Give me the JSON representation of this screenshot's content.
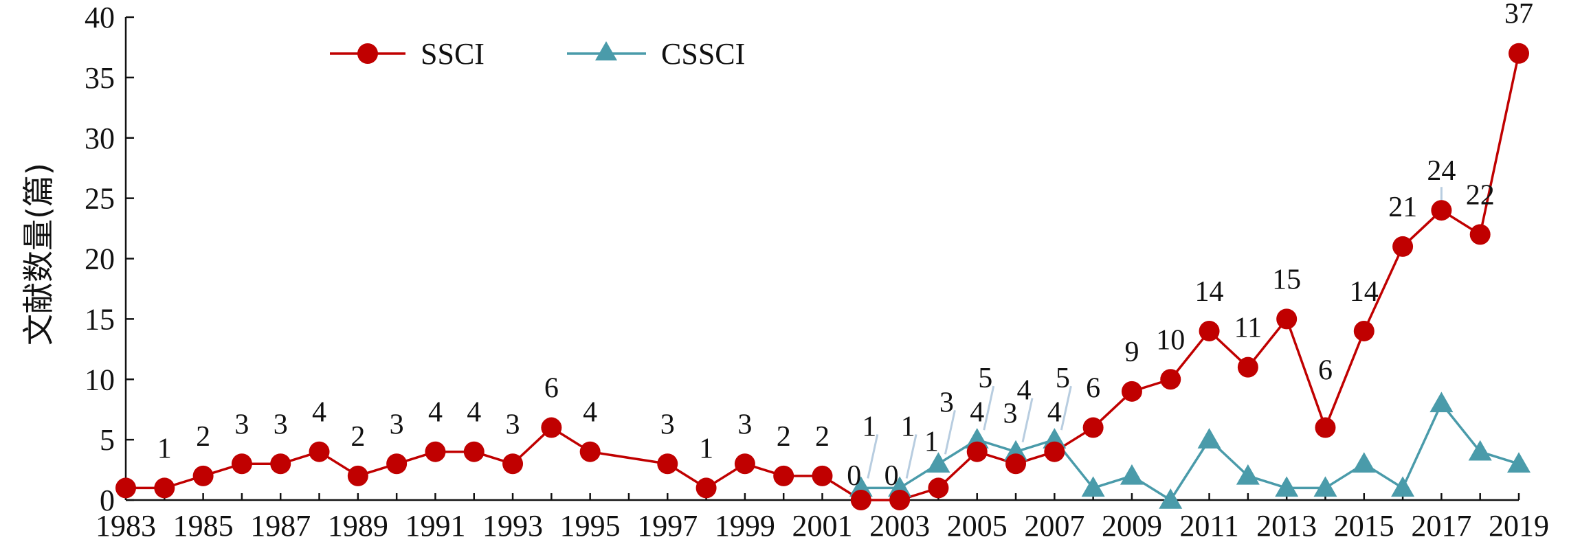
{
  "chart_data": {
    "type": "line",
    "title": "",
    "xlabel": "",
    "ylabel": "文献数量(篇)",
    "xlim": [
      1983,
      2019
    ],
    "ylim": [
      0,
      40
    ],
    "yticks": [
      0,
      5,
      10,
      15,
      20,
      25,
      30,
      35,
      40
    ],
    "xtick_labels": [
      "1983",
      "1985",
      "1987",
      "1989",
      "1991",
      "1993",
      "1995",
      "1997",
      "1999",
      "2001",
      "2003",
      "2005",
      "2007",
      "2009",
      "2011",
      "2013",
      "2015",
      "2017",
      "2019"
    ],
    "grid": false,
    "legend_position": "top-left",
    "series": [
      {
        "name": "SSCI",
        "color": "#C00000",
        "marker": "circle",
        "points": [
          {
            "x": 1983,
            "y": 1
          },
          {
            "x": 1984,
            "y": 1
          },
          {
            "x": 1985,
            "y": 2
          },
          {
            "x": 1986,
            "y": 3
          },
          {
            "x": 1987,
            "y": 3
          },
          {
            "x": 1988,
            "y": 4
          },
          {
            "x": 1989,
            "y": 2
          },
          {
            "x": 1990,
            "y": 3
          },
          {
            "x": 1991,
            "y": 4
          },
          {
            "x": 1992,
            "y": 4
          },
          {
            "x": 1993,
            "y": 3
          },
          {
            "x": 1994,
            "y": 6
          },
          {
            "x": 1995,
            "y": 4
          },
          {
            "x": 1997,
            "y": 3
          },
          {
            "x": 1998,
            "y": 1
          },
          {
            "x": 1999,
            "y": 3
          },
          {
            "x": 2000,
            "y": 2
          },
          {
            "x": 2001,
            "y": 2
          },
          {
            "x": 2002,
            "y": 0
          },
          {
            "x": 2003,
            "y": 0
          },
          {
            "x": 2004,
            "y": 1
          },
          {
            "x": 2005,
            "y": 4
          },
          {
            "x": 2006,
            "y": 3
          },
          {
            "x": 2007,
            "y": 4
          },
          {
            "x": 2008,
            "y": 6
          },
          {
            "x": 2009,
            "y": 9
          },
          {
            "x": 2010,
            "y": 10
          },
          {
            "x": 2011,
            "y": 14
          },
          {
            "x": 2012,
            "y": 11
          },
          {
            "x": 2013,
            "y": 15
          },
          {
            "x": 2014,
            "y": 6
          },
          {
            "x": 2015,
            "y": 14
          },
          {
            "x": 2016,
            "y": 21
          },
          {
            "x": 2017,
            "y": 24
          },
          {
            "x": 2018,
            "y": 22
          },
          {
            "x": 2019,
            "y": 37
          }
        ],
        "labels": [
          {
            "x": 1984,
            "text": "1"
          },
          {
            "x": 1985,
            "text": "2"
          },
          {
            "x": 1986,
            "text": "3"
          },
          {
            "x": 1987,
            "text": "3"
          },
          {
            "x": 1988,
            "text": "4"
          },
          {
            "x": 1989,
            "text": "2"
          },
          {
            "x": 1990,
            "text": "3"
          },
          {
            "x": 1991,
            "text": "4"
          },
          {
            "x": 1992,
            "text": "4"
          },
          {
            "x": 1993,
            "text": "3"
          },
          {
            "x": 1994,
            "text": "6"
          },
          {
            "x": 1995,
            "text": "4"
          },
          {
            "x": 1997,
            "text": "3"
          },
          {
            "x": 1998,
            "text": "1"
          },
          {
            "x": 1999,
            "text": "3"
          },
          {
            "x": 2000,
            "text": "2"
          },
          {
            "x": 2001,
            "text": "2"
          },
          {
            "x": 2002,
            "text": "0"
          },
          {
            "x": 2003,
            "text": "0"
          },
          {
            "x": 2004,
            "text": "1"
          },
          {
            "x": 2005,
            "text": "4"
          },
          {
            "x": 2006,
            "text": "3"
          },
          {
            "x": 2007,
            "text": "4"
          },
          {
            "x": 2008,
            "text": "6"
          },
          {
            "x": 2009,
            "text": "9"
          },
          {
            "x": 2010,
            "text": "10"
          },
          {
            "x": 2011,
            "text": "14"
          },
          {
            "x": 2012,
            "text": "11"
          },
          {
            "x": 2013,
            "text": "15"
          },
          {
            "x": 2014,
            "text": "6"
          },
          {
            "x": 2015,
            "text": "14"
          },
          {
            "x": 2016,
            "text": "21"
          },
          {
            "x": 2017,
            "text": "24"
          },
          {
            "x": 2018,
            "text": "22"
          },
          {
            "x": 2019,
            "text": "37"
          }
        ]
      },
      {
        "name": "CSSCI",
        "color": "#4A9BAA",
        "marker": "triangle",
        "points": [
          {
            "x": 2002,
            "y": 1
          },
          {
            "x": 2003,
            "y": 1
          },
          {
            "x": 2004,
            "y": 3
          },
          {
            "x": 2005,
            "y": 5
          },
          {
            "x": 2006,
            "y": 4
          },
          {
            "x": 2007,
            "y": 5
          },
          {
            "x": 2008,
            "y": 1
          },
          {
            "x": 2009,
            "y": 2
          },
          {
            "x": 2010,
            "y": 0
          },
          {
            "x": 2011,
            "y": 5
          },
          {
            "x": 2012,
            "y": 2
          },
          {
            "x": 2013,
            "y": 1
          },
          {
            "x": 2014,
            "y": 1
          },
          {
            "x": 2015,
            "y": 3
          },
          {
            "x": 2016,
            "y": 1
          },
          {
            "x": 2017,
            "y": 8
          },
          {
            "x": 2018,
            "y": 4
          },
          {
            "x": 2019,
            "y": 3
          }
        ],
        "labels": [
          {
            "x": 2002,
            "text": "1"
          },
          {
            "x": 2003,
            "text": "1"
          },
          {
            "x": 2004,
            "text": "3"
          },
          {
            "x": 2005,
            "text": "5"
          },
          {
            "x": 2006,
            "text": "4"
          },
          {
            "x": 2007,
            "text": "5"
          }
        ]
      }
    ]
  }
}
